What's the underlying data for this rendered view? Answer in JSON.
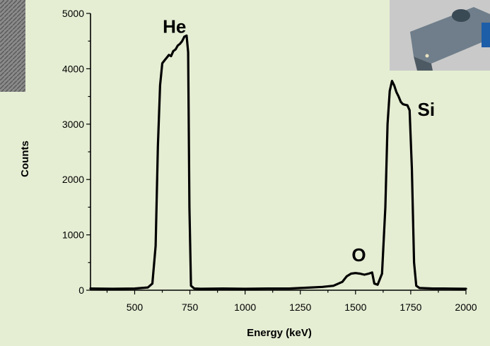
{
  "chart_data": {
    "type": "line",
    "title": "",
    "xlabel": "Energy (keV)",
    "ylabel": "Counts",
    "xlim": [
      300,
      2000
    ],
    "ylim": [
      0,
      5000
    ],
    "x_ticks": [
      500,
      750,
      1000,
      1250,
      1500,
      1750,
      2000
    ],
    "y_ticks": [
      0,
      1000,
      2000,
      3000,
      4000,
      5000
    ],
    "grid": false,
    "legend": "none",
    "annotations": [
      {
        "text": "He",
        "x": 680,
        "y": 4650
      },
      {
        "text": "O",
        "x": 1515,
        "y": 520
      },
      {
        "text": "Si",
        "x": 1820,
        "y": 3150
      }
    ],
    "series": [
      {
        "color": "#000000",
        "x": [
          300,
          400,
          500,
          560,
          580,
          595,
          605,
          615,
          625,
          635,
          645,
          655,
          665,
          675,
          685,
          695,
          705,
          715,
          725,
          735,
          742,
          748,
          755,
          770,
          800,
          900,
          1000,
          1100,
          1200,
          1300,
          1350,
          1400,
          1440,
          1460,
          1480,
          1500,
          1520,
          1540,
          1560,
          1575,
          1585,
          1600,
          1620,
          1635,
          1645,
          1655,
          1665,
          1675,
          1685,
          1695,
          1705,
          1715,
          1725,
          1735,
          1745,
          1755,
          1765,
          1775,
          1790,
          1850,
          1900,
          2000
        ],
        "y": [
          30,
          25,
          30,
          50,
          120,
          800,
          2600,
          3700,
          4100,
          4150,
          4200,
          4250,
          4230,
          4320,
          4350,
          4420,
          4450,
          4500,
          4580,
          4600,
          4300,
          1500,
          80,
          30,
          25,
          30,
          25,
          30,
          30,
          50,
          60,
          80,
          150,
          250,
          300,
          310,
          300,
          280,
          300,
          320,
          120,
          100,
          300,
          1500,
          3000,
          3600,
          3780,
          3700,
          3580,
          3500,
          3400,
          3360,
          3350,
          3340,
          3250,
          2200,
          500,
          80,
          40,
          30,
          30,
          25
        ]
      }
    ]
  }
}
